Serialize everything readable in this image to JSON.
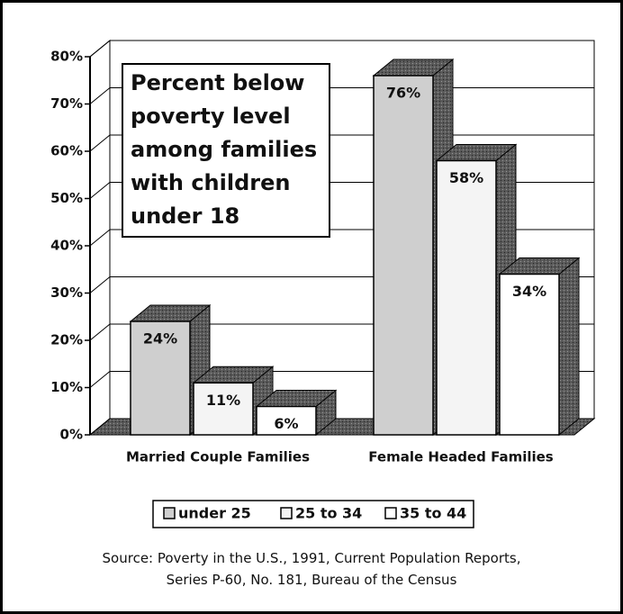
{
  "chart_data": {
    "type": "bar3d",
    "title": "Percent below poverty level among families with children under 18",
    "categories": [
      "Married Couple Families",
      "Female Headed Families"
    ],
    "series": [
      {
        "name": "under 25",
        "color": "#cfcfcf",
        "values": [
          24,
          76
        ],
        "value_labels": [
          "24%",
          "76%"
        ]
      },
      {
        "name": "25 to 34",
        "color": "#f4f4f4",
        "values": [
          11,
          58
        ],
        "value_labels": [
          "11%",
          "58%"
        ]
      },
      {
        "name": "35 to 44",
        "color": "#ffffff",
        "values": [
          6,
          34
        ],
        "value_labels": [
          "6%",
          "34%"
        ]
      }
    ],
    "ylim": [
      0,
      80
    ],
    "yticks": [
      {
        "value": 0,
        "label": "0%"
      },
      {
        "value": 10,
        "label": "10%"
      },
      {
        "value": 20,
        "label": "20%"
      },
      {
        "value": 30,
        "label": "30%"
      },
      {
        "value": 40,
        "label": "40%"
      },
      {
        "value": 50,
        "label": "50%"
      },
      {
        "value": 60,
        "label": "60%"
      },
      {
        "value": 70,
        "label": "70%"
      },
      {
        "value": 80,
        "label": "80%"
      }
    ],
    "grid": true,
    "legend": "bottom",
    "source": "Source: Poverty in the U.S., 1991, Current Population Reports, Series P-60, No. 181, Bureau of the Census"
  }
}
